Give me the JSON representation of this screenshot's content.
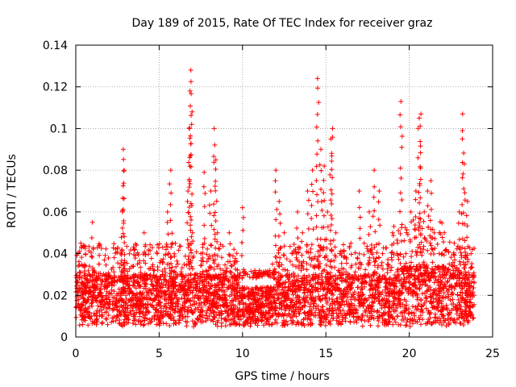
{
  "chart_data": {
    "type": "scatter",
    "title": "Day 189 of 2015, Rate Of TEC Index for receiver graz",
    "xlabel": "GPS time / hours",
    "ylabel": "ROTI / TECUs",
    "xlim": [
      0,
      25
    ],
    "ylim": [
      0,
      0.14
    ],
    "xticks": [
      0,
      5,
      10,
      15,
      20,
      25
    ],
    "xtick_labels": [
      "0",
      "5",
      "10",
      "15",
      "20",
      "25"
    ],
    "yticks": [
      0,
      0.02,
      0.04,
      0.06,
      0.08,
      0.1,
      0.12,
      0.14
    ],
    "ytick_labels": [
      "0",
      "0.02",
      "0.04",
      "0.06",
      "0.08",
      "0.1",
      "0.12",
      "0.14"
    ],
    "grid": true,
    "marker": "+",
    "color": "#ff0000",
    "series": [
      {
        "name": "ROTI",
        "x": [
          0.1,
          0.3,
          0.6,
          0.8,
          1.0,
          1.1,
          1.4,
          1.7,
          1.8,
          2.0,
          2.3,
          2.7,
          2.8,
          2.85,
          2.9,
          3.0,
          3.3,
          3.7,
          3.9,
          4.1,
          4.4,
          4.6,
          4.9,
          5.2,
          5.5,
          5.7,
          5.8,
          6.0,
          6.3,
          6.7,
          6.8,
          6.85,
          6.9,
          7.0,
          7.2,
          7.5,
          7.7,
          7.9,
          8.1,
          8.3,
          8.4,
          8.5,
          8.7,
          9.0,
          9.2,
          9.5,
          9.7,
          10.0,
          10.3,
          10.6,
          10.9,
          11.2,
          11.5,
          11.8,
          12.0,
          12.2,
          12.5,
          12.8,
          13.0,
          13.3,
          13.6,
          13.9,
          14.2,
          14.5,
          14.7,
          14.9,
          15.1,
          15.3,
          15.4,
          15.6,
          15.9,
          16.2,
          16.5,
          16.8,
          17.0,
          17.3,
          17.6,
          17.9,
          18.2,
          18.4,
          18.7,
          19.0,
          19.3,
          19.5,
          19.8,
          20.1,
          20.4,
          20.6,
          20.7,
          20.9,
          21.1,
          21.3,
          21.5,
          21.8,
          22.1,
          22.4,
          22.7,
          23.0,
          23.2,
          23.3,
          23.5,
          23.7
        ],
        "y": [
          0.02,
          0.045,
          0.025,
          0.03,
          0.055,
          0.02,
          0.035,
          0.015,
          0.03,
          0.018,
          0.025,
          0.04,
          0.06,
          0.09,
          0.08,
          0.02,
          0.022,
          0.035,
          0.03,
          0.05,
          0.018,
          0.025,
          0.02,
          0.03,
          0.06,
          0.08,
          0.045,
          0.02,
          0.03,
          0.065,
          0.1,
          0.118,
          0.128,
          0.05,
          0.02,
          0.04,
          0.079,
          0.03,
          0.07,
          0.1,
          0.085,
          0.05,
          0.03,
          0.02,
          0.05,
          0.035,
          0.02,
          0.062,
          0.03,
          0.02,
          0.018,
          0.015,
          0.02,
          0.035,
          0.08,
          0.065,
          0.05,
          0.03,
          0.04,
          0.06,
          0.05,
          0.07,
          0.08,
          0.124,
          0.09,
          0.082,
          0.06,
          0.095,
          0.1,
          0.05,
          0.04,
          0.03,
          0.045,
          0.035,
          0.07,
          0.045,
          0.06,
          0.08,
          0.07,
          0.04,
          0.035,
          0.05,
          0.045,
          0.113,
          0.04,
          0.06,
          0.07,
          0.105,
          0.107,
          0.06,
          0.07,
          0.075,
          0.05,
          0.04,
          0.05,
          0.035,
          0.045,
          0.06,
          0.107,
          0.083,
          0.065,
          0.04
        ]
      }
    ],
    "baseline_band": {
      "description": "dense continuous scatter of ROTI points between ~0.005 and ~0.03 TECU/s across 0-24 h",
      "y_range": [
        0.005,
        0.03
      ],
      "x_range": [
        0,
        23.9
      ]
    }
  }
}
